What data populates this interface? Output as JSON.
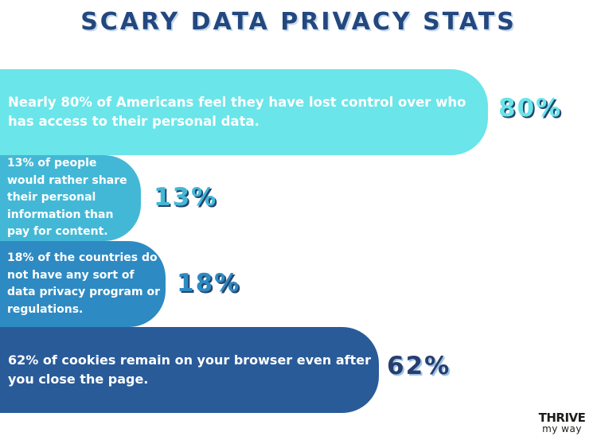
{
  "title": "SCARY DATA PRIVACY STATS",
  "chart_data": {
    "type": "bar",
    "orientation": "horizontal",
    "title": "SCARY DATA PRIVACY STATS",
    "categories": [
      "Nearly 80% of Americans feel they have lost control over who has access to their personal data.",
      "13% of people would rather share their personal information than pay for content.",
      "18% of the countries do not have any sort of data privacy program or regulations.",
      "62% of cookies remain on your browser even after you close the page."
    ],
    "values": [
      80,
      13,
      18,
      62
    ],
    "value_labels": [
      "80%",
      "13%",
      "18%",
      "62%"
    ],
    "xlabel": "",
    "ylabel": "",
    "grid": false,
    "colors": {
      "bars": [
        "#6ae5e9",
        "#43b8d6",
        "#2e8ac2",
        "#295b99"
      ],
      "value_labels": [
        "#6ae5e9",
        "#43b8d6",
        "#2e8ac2",
        "#283d6f"
      ],
      "title": "#23477f"
    }
  },
  "logo": {
    "line1": "THRIVE",
    "line2": "my way"
  }
}
